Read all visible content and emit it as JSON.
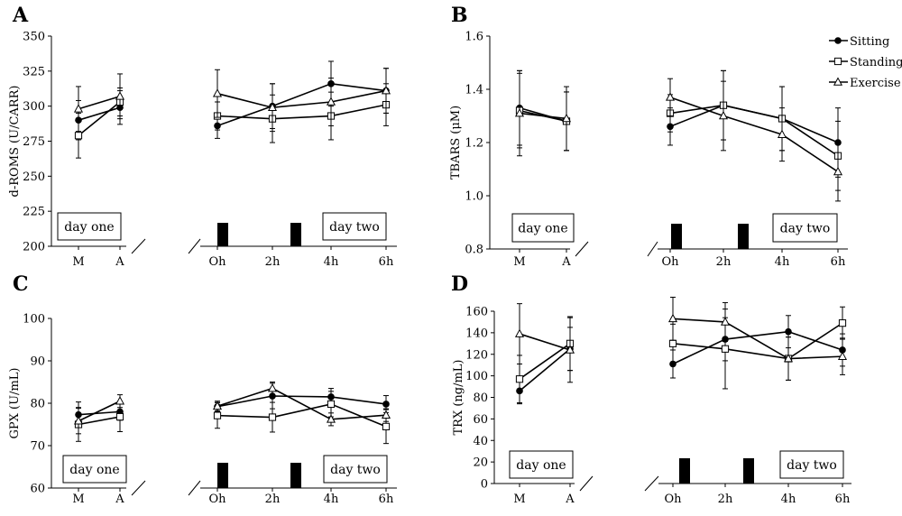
{
  "legend": [
    {
      "name": "Sitting",
      "marker": "filled-circle"
    },
    {
      "name": "Standing",
      "marker": "open-square"
    },
    {
      "name": "Exercise",
      "marker": "open-triangle"
    }
  ],
  "colors": {
    "line": "#000000",
    "background": "#ffffff"
  },
  "chart_data": [
    {
      "type": "line",
      "panel": "A",
      "ylabel": "d-ROMS (U/CARR)",
      "ylim": [
        200,
        350
      ],
      "yticks": [
        200,
        225,
        250,
        275,
        300,
        325,
        350
      ],
      "day_one": {
        "label": "day one",
        "categories": [
          "M",
          "A"
        ]
      },
      "day_two": {
        "label": "day two",
        "categories": [
          "Oh",
          "2h",
          "4h",
          "6h"
        ]
      },
      "series": [
        {
          "name": "Sitting",
          "day_one": [
            290,
            299
          ],
          "day_one_err": [
            14,
            12
          ],
          "day_two": [
            286,
            300,
            316,
            311
          ],
          "day_two_err": [
            9,
            16,
            16,
            16
          ]
        },
        {
          "name": "Standing",
          "day_one": [
            279,
            303
          ],
          "day_one_err": [
            16,
            10
          ],
          "day_two": [
            293,
            291,
            293,
            301
          ],
          "day_two_err": [
            10,
            17,
            17,
            15
          ]
        },
        {
          "name": "Exercise",
          "day_one": [
            298,
            307
          ],
          "day_one_err": [
            16,
            16
          ],
          "day_two": [
            309,
            299,
            303,
            311
          ],
          "day_two_err": [
            17,
            17,
            17,
            16
          ]
        }
      ]
    },
    {
      "type": "line",
      "panel": "B",
      "ylabel": "TBARS (μM)",
      "ylim": [
        0.8,
        1.6
      ],
      "yticks": [
        0.8,
        1.0,
        1.2,
        1.4,
        1.6
      ],
      "day_one": {
        "label": "day one",
        "categories": [
          "M",
          "A"
        ]
      },
      "day_two": {
        "label": "day two",
        "categories": [
          "Oh",
          "2h",
          "4h",
          "6h"
        ]
      },
      "series": [
        {
          "name": "Sitting",
          "day_one": [
            1.33,
            1.28
          ],
          "day_one_err": [
            0.14,
            0.11
          ],
          "day_two": [
            1.26,
            1.34,
            1.29,
            1.2
          ],
          "day_two_err": [
            0.07,
            0.13,
            0.12,
            0.13
          ]
        },
        {
          "name": "Standing",
          "day_one": [
            1.32,
            1.28
          ],
          "day_one_err": [
            0.14,
            0.11
          ],
          "day_two": [
            1.31,
            1.34,
            1.29,
            1.15
          ],
          "day_two_err": [
            0.07,
            0.13,
            0.12,
            0.13
          ]
        },
        {
          "name": "Exercise",
          "day_one": [
            1.31,
            1.29
          ],
          "day_one_err": [
            0.16,
            0.12
          ],
          "day_two": [
            1.37,
            1.3,
            1.23,
            1.09
          ],
          "day_two_err": [
            0.07,
            0.13,
            0.1,
            0.11
          ]
        }
      ]
    },
    {
      "type": "line",
      "panel": "C",
      "ylabel": "GPX (U/mL)",
      "ylim": [
        60,
        100
      ],
      "yticks": [
        60,
        70,
        80,
        90,
        100
      ],
      "day_one": {
        "label": "day one",
        "categories": [
          "M",
          "A"
        ]
      },
      "day_two": {
        "label": "day two",
        "categories": [
          "Oh",
          "2h",
          "4h",
          "6h"
        ]
      },
      "series": [
        {
          "name": "Sitting",
          "day_one": [
            77.3,
            78
          ],
          "day_one_err": [
            3,
            2
          ],
          "day_two": [
            79.2,
            81.7,
            81.5,
            79.8
          ],
          "day_two_err": [
            1,
            3,
            2,
            2
          ]
        },
        {
          "name": "Standing",
          "day_one": [
            75,
            76.8
          ],
          "day_one_err": [
            4,
            3.5
          ],
          "day_two": [
            77.1,
            76.7,
            79.8,
            74.5
          ],
          "day_two_err": [
            3,
            3.5,
            3,
            4
          ]
        },
        {
          "name": "Exercise",
          "day_one": [
            75.8,
            80.5
          ],
          "day_one_err": [
            3,
            1.5
          ],
          "day_two": [
            79.3,
            83.5,
            76.2,
            77.2
          ],
          "day_two_err": [
            1.2,
            1.5,
            1.5,
            1.5
          ]
        }
      ]
    },
    {
      "type": "line",
      "panel": "D",
      "ylabel": "TRX (ng/mL)",
      "ylim": [
        0,
        160
      ],
      "yticks": [
        0,
        20,
        40,
        60,
        80,
        100,
        120,
        140,
        160
      ],
      "day_one": {
        "label": "day one",
        "categories": [
          "M",
          "A"
        ]
      },
      "day_two": {
        "label": "day two",
        "categories": [
          "Oh",
          "2h",
          "4h",
          "6h"
        ]
      },
      "series": [
        {
          "name": "Sitting",
          "day_one": [
            86,
            125
          ],
          "day_one_err": [
            12,
            20
          ],
          "day_two": [
            111,
            134,
            141,
            124
          ],
          "day_two_err": [
            13,
            20,
            15,
            15
          ]
        },
        {
          "name": "Standing",
          "day_one": [
            97,
            130
          ],
          "day_one_err": [
            22,
            25
          ],
          "day_two": [
            130,
            125,
            116,
            149
          ],
          "day_two_err": [
            18,
            37,
            20,
            15
          ]
        },
        {
          "name": "Exercise",
          "day_one": [
            139,
            124
          ],
          "day_one_err": [
            28,
            30
          ],
          "day_two": [
            153,
            150,
            116,
            118
          ],
          "day_two_err": [
            20,
            18,
            20,
            17
          ]
        }
      ]
    }
  ]
}
